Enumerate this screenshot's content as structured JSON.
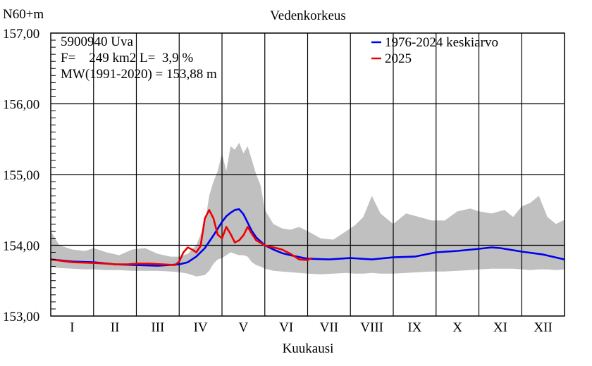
{
  "chart_data": {
    "type": "line",
    "title": "Vedenkorkeus",
    "ylabel": "N60+m",
    "xlabel": "Kuukausi",
    "ylim": [
      153.0,
      157.0
    ],
    "xlim": [
      0,
      12
    ],
    "yticks": [
      "153,00",
      "154,00",
      "155,00",
      "156,00",
      "157,00"
    ],
    "ytick_values": [
      153,
      154,
      155,
      156,
      157
    ],
    "months": [
      "I",
      "II",
      "III",
      "IV",
      "V",
      "VI",
      "VII",
      "VIII",
      "IX",
      "X",
      "XI",
      "XII"
    ],
    "info_lines": [
      "5900940 Uva",
      "F=    249 km2 L=  3,9 %",
      "MW(1991-2020) = 153,88 m"
    ],
    "grid": true,
    "legend_position": "top-right",
    "series": [
      {
        "name": "1976-2024 keskiarvo",
        "color": "#0000ee",
        "x": [
          0.0,
          0.5,
          1.0,
          1.5,
          2.0,
          2.5,
          3.0,
          3.2,
          3.4,
          3.6,
          3.8,
          4.0,
          4.1,
          4.2,
          4.3,
          4.4,
          4.5,
          4.6,
          4.7,
          4.8,
          5.0,
          5.2,
          5.4,
          5.6,
          6.0,
          6.5,
          7.0,
          7.5,
          8.0,
          8.5,
          9.0,
          9.5,
          10.0,
          10.3,
          10.5,
          11.0,
          11.5,
          12.0
        ],
        "values": [
          153.8,
          153.77,
          153.76,
          153.73,
          153.72,
          153.71,
          153.73,
          153.76,
          153.84,
          153.96,
          154.14,
          154.33,
          154.41,
          154.46,
          154.5,
          154.51,
          154.44,
          154.32,
          154.2,
          154.11,
          154.0,
          153.94,
          153.89,
          153.86,
          153.81,
          153.8,
          153.82,
          153.8,
          153.83,
          153.84,
          153.9,
          153.92,
          153.95,
          153.97,
          153.96,
          153.91,
          153.87,
          153.8
        ]
      },
      {
        "name": "2025",
        "color": "#ee0000",
        "x": [
          0.0,
          0.5,
          1.0,
          1.3,
          1.5,
          1.8,
          2.0,
          2.3,
          2.6,
          2.9,
          3.0,
          3.1,
          3.2,
          3.3,
          3.4,
          3.5,
          3.6,
          3.7,
          3.8,
          3.9,
          4.0,
          4.1,
          4.2,
          4.3,
          4.4,
          4.5,
          4.6,
          4.7,
          4.8,
          5.0,
          5.2,
          5.4,
          5.6,
          5.8,
          6.0,
          6.1
        ],
        "values": [
          153.8,
          153.76,
          153.75,
          153.74,
          153.73,
          153.73,
          153.74,
          153.74,
          153.73,
          153.72,
          153.77,
          153.9,
          153.97,
          153.94,
          153.9,
          153.99,
          154.38,
          154.5,
          154.38,
          154.15,
          154.1,
          154.26,
          154.16,
          154.04,
          154.07,
          154.14,
          154.26,
          154.16,
          154.07,
          154.0,
          153.97,
          153.94,
          153.88,
          153.8,
          153.79,
          153.82
        ]
      },
      {
        "name": "",
        "type": "area",
        "color": "#c0c0c0",
        "x": [
          0.0,
          0.2,
          0.5,
          0.8,
          1.0,
          1.3,
          1.6,
          1.9,
          2.2,
          2.5,
          2.8,
          3.0,
          3.2,
          3.4,
          3.6,
          3.7,
          3.8,
          3.9,
          4.0,
          4.1,
          4.2,
          4.3,
          4.4,
          4.5,
          4.6,
          4.7,
          4.8,
          4.9,
          5.0,
          5.2,
          5.4,
          5.6,
          5.8,
          6.0,
          6.3,
          6.6,
          6.9,
          7.1,
          7.3,
          7.5,
          7.7,
          8.0,
          8.3,
          8.6,
          8.9,
          9.2,
          9.5,
          9.8,
          10.0,
          10.3,
          10.6,
          10.8,
          11.0,
          11.2,
          11.4,
          11.6,
          11.8,
          12.0
        ],
        "upper": [
          154.2,
          154.0,
          153.94,
          153.92,
          153.96,
          153.9,
          153.86,
          153.94,
          153.96,
          153.88,
          153.84,
          153.84,
          153.88,
          154.0,
          154.3,
          154.7,
          154.9,
          155.05,
          155.3,
          155.05,
          155.4,
          155.35,
          155.45,
          155.3,
          155.4,
          155.2,
          155.0,
          154.85,
          154.5,
          154.3,
          154.24,
          154.22,
          154.26,
          154.2,
          154.1,
          154.08,
          154.2,
          154.28,
          154.4,
          154.7,
          154.45,
          154.3,
          154.45,
          154.4,
          154.35,
          154.35,
          154.48,
          154.52,
          154.48,
          154.45,
          154.5,
          154.4,
          154.55,
          154.6,
          154.7,
          154.4,
          154.3,
          154.36
        ],
        "lower": [
          153.7,
          153.68,
          153.67,
          153.66,
          153.66,
          153.65,
          153.65,
          153.64,
          153.64,
          153.64,
          153.63,
          153.62,
          153.6,
          153.56,
          153.58,
          153.64,
          153.74,
          153.8,
          153.82,
          153.86,
          153.9,
          153.88,
          153.86,
          153.86,
          153.84,
          153.76,
          153.72,
          153.7,
          153.67,
          153.64,
          153.63,
          153.62,
          153.61,
          153.6,
          153.59,
          153.6,
          153.61,
          153.6,
          153.6,
          153.61,
          153.6,
          153.6,
          153.61,
          153.62,
          153.63,
          153.63,
          153.64,
          153.65,
          153.66,
          153.67,
          153.67,
          153.67,
          153.66,
          153.65,
          153.66,
          153.66,
          153.65,
          153.66
        ]
      }
    ]
  }
}
